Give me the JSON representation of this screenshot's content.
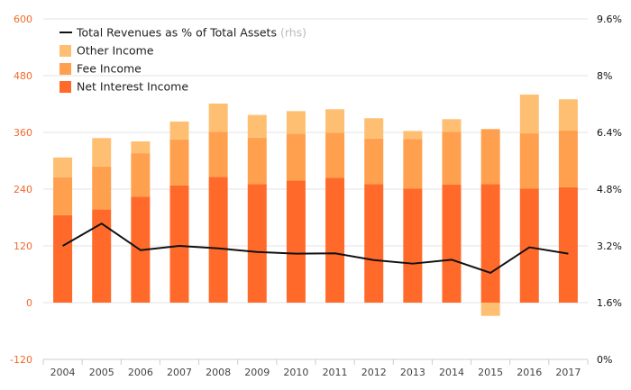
{
  "chart_data": {
    "type": "bar",
    "stacked": true,
    "categories": [
      "2004",
      "2005",
      "2006",
      "2007",
      "2008",
      "2009",
      "2010",
      "2011",
      "2012",
      "2013",
      "2014",
      "2015",
      "2016",
      "2017"
    ],
    "series": [
      {
        "name": "Net Interest Income",
        "color": "#ff6a2b",
        "axis": "left",
        "values": [
          185,
          197,
          224,
          248,
          266,
          251,
          258,
          264,
          251,
          241,
          250,
          251,
          241,
          244
        ]
      },
      {
        "name": "Fee Income",
        "color": "#ffa04f",
        "axis": "left",
        "values": [
          80,
          91,
          92,
          97,
          95,
          98,
          99,
          95,
          96,
          105,
          111,
          116,
          117,
          120
        ]
      },
      {
        "name": "Other Income",
        "color": "#ffbf73",
        "axis": "left",
        "values": [
          42,
          60,
          25,
          38,
          60,
          48,
          48,
          50,
          43,
          17,
          27,
          -28,
          82,
          66
        ]
      },
      {
        "name": "Total Revenues as % of Total Assets",
        "legend_suffix": "(rhs)",
        "type": "line",
        "color": "#111111",
        "axis": "right",
        "values": [
          3.2,
          3.83,
          3.08,
          3.2,
          3.13,
          3.03,
          2.98,
          2.99,
          2.8,
          2.7,
          2.81,
          2.44,
          3.16,
          2.98
        ]
      }
    ],
    "legend_order": [
      "Total Revenues as % of Total Assets",
      "Other Income",
      "Fee Income",
      "Net Interest Income"
    ],
    "legend_placement": "top-left",
    "y_left": {
      "ticks": [
        "600",
        "480",
        "360",
        "240",
        "120",
        "0",
        "-120"
      ],
      "range": [
        -120,
        600
      ]
    },
    "y_right": {
      "ticks": [
        "9.6%",
        "8%",
        "6.4%",
        "4.8%",
        "3.2%",
        "1.6%",
        "0%"
      ],
      "range": [
        0,
        9.6
      ]
    },
    "grid": true
  }
}
